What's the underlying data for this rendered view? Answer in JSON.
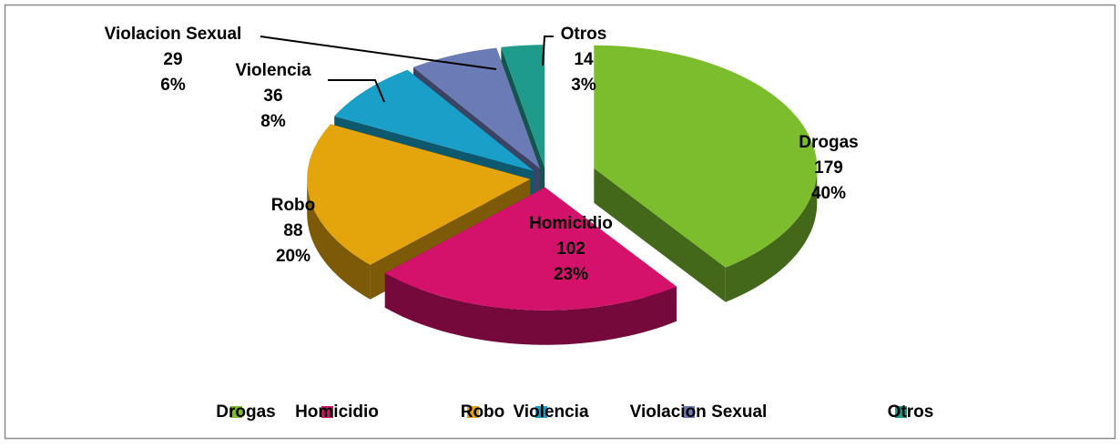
{
  "chart_data": {
    "type": "pie3d",
    "categories": [
      "Drogas",
      "Homicidio",
      "Robo",
      "Violencia",
      "Violacion Sexual",
      "Otros"
    ],
    "values": [
      179,
      102,
      88,
      36,
      29,
      14
    ],
    "percent_labels": [
      "40%",
      "23%",
      "20%",
      "8%",
      "6%",
      "3%"
    ],
    "colors": [
      "#7cbd2e",
      "#d4116b",
      "#e3a40c",
      "#1aa0c8",
      "#6b7bb5",
      "#1f9b8c"
    ],
    "legend": "bottom"
  }
}
